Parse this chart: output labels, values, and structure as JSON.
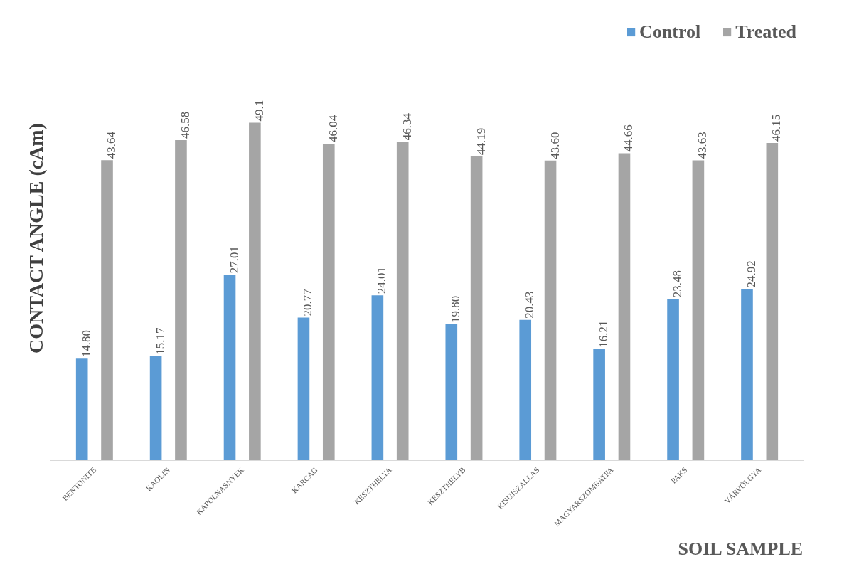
{
  "chart_data": {
    "type": "bar",
    "xlabel": "SOIL SAMPLE",
    "ylabel": "CONTACT ANGLE (cAm)",
    "categories": [
      "BENTONITE",
      "KAOLIN",
      "KAPOLNASNYEK",
      "KARCAG",
      "KESZTHELYA",
      "KESZTHELYB",
      "KISUJSZALLAS",
      "MAGYARSZOMBATFA",
      "PAKS",
      "VÁRVÖLGYA"
    ],
    "series": [
      {
        "name": "Control",
        "color": "#5b9bd5",
        "values": [
          14.8,
          15.17,
          27.01,
          20.77,
          24.01,
          19.8,
          20.43,
          16.21,
          23.48,
          24.92
        ],
        "value_labels": [
          "14.80",
          "15.17",
          "27.01",
          "20.77",
          "24.01",
          "19.80",
          "20.43",
          "16.21",
          "23.48",
          "24.92"
        ]
      },
      {
        "name": "Treated",
        "color": "#a5a5a5",
        "values": [
          43.64,
          46.58,
          49.1,
          46.04,
          46.34,
          44.19,
          43.6,
          44.66,
          43.63,
          46.15
        ],
        "value_labels": [
          "43.64",
          "46.58",
          "49.1",
          "46.04",
          "46.34",
          "44.19",
          "43.60",
          "44.66",
          "43.63",
          "46.15"
        ]
      }
    ],
    "legend": "top right",
    "grid": false
  }
}
